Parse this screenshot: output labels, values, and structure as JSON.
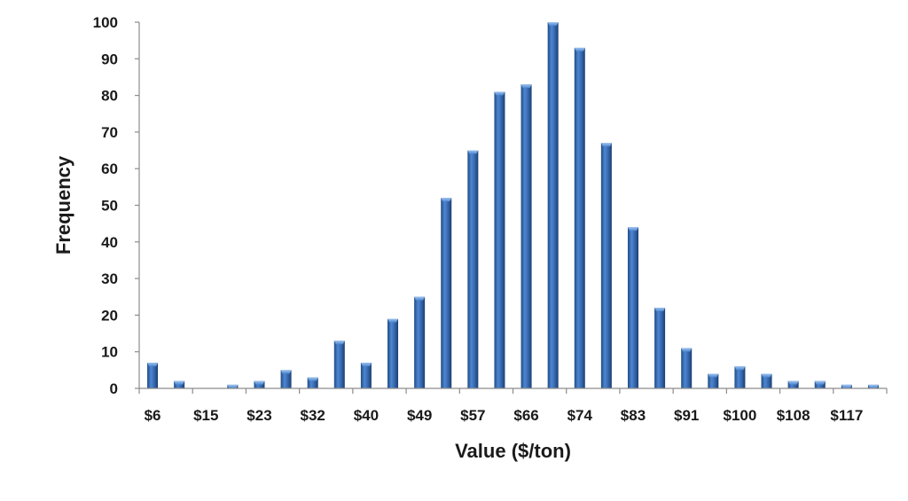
{
  "chart_data": {
    "type": "bar",
    "title": "",
    "xlabel": "Value ($/ton)",
    "ylabel": "Frequency",
    "ylim": [
      0,
      100
    ],
    "yticks": [
      0,
      10,
      20,
      30,
      40,
      50,
      60,
      70,
      80,
      90,
      100
    ],
    "xtick_labels": [
      "$6",
      "$15",
      "$23",
      "$32",
      "$40",
      "$49",
      "$57",
      "$66",
      "$74",
      "$83",
      "$91",
      "$100",
      "$108",
      "$117"
    ],
    "bars": [
      {
        "x": 0,
        "value": 7
      },
      {
        "x": 1,
        "value": 2
      },
      {
        "x": 2,
        "value": 0
      },
      {
        "x": 3,
        "value": 1
      },
      {
        "x": 4,
        "value": 2
      },
      {
        "x": 5,
        "value": 5
      },
      {
        "x": 6,
        "value": 3
      },
      {
        "x": 7,
        "value": 13
      },
      {
        "x": 8,
        "value": 7
      },
      {
        "x": 9,
        "value": 19
      },
      {
        "x": 10,
        "value": 25
      },
      {
        "x": 11,
        "value": 52
      },
      {
        "x": 12,
        "value": 65
      },
      {
        "x": 13,
        "value": 81
      },
      {
        "x": 14,
        "value": 83
      },
      {
        "x": 15,
        "value": 100
      },
      {
        "x": 16,
        "value": 93
      },
      {
        "x": 17,
        "value": 67
      },
      {
        "x": 18,
        "value": 44
      },
      {
        "x": 19,
        "value": 22
      },
      {
        "x": 20,
        "value": 11
      },
      {
        "x": 21,
        "value": 4
      },
      {
        "x": 22,
        "value": 6
      },
      {
        "x": 23,
        "value": 4
      },
      {
        "x": 24,
        "value": 2
      },
      {
        "x": 25,
        "value": 2
      },
      {
        "x": 26,
        "value": 1
      },
      {
        "x": 27,
        "value": 1
      }
    ],
    "grid": false,
    "legend": "none",
    "bar_color": "#2e63a8"
  }
}
